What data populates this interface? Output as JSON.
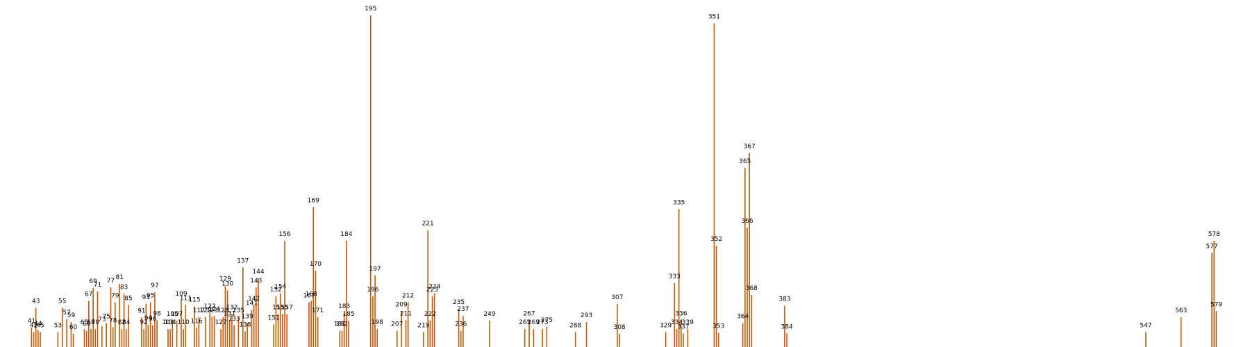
{
  "chart_data": {
    "type": "bar",
    "title": "",
    "xlabel": "",
    "ylabel": "",
    "bar_color": "#cc5500",
    "grid": false,
    "legend": "none",
    "xlim": [
      33,
      588
    ],
    "ylim": [
      0,
      1.0
    ],
    "points": [
      {
        "x": 41,
        "value": 0.059
      },
      {
        "x": 42,
        "value": 0.045
      },
      {
        "x": 43,
        "value": 0.118
      },
      {
        "x": 44,
        "value": 0.05
      },
      {
        "x": 45,
        "value": 0.045
      },
      {
        "x": 53,
        "value": 0.045
      },
      {
        "x": 55,
        "value": 0.118
      },
      {
        "x": 57,
        "value": 0.084
      },
      {
        "x": 59,
        "value": 0.075
      },
      {
        "x": 60,
        "value": 0.04
      },
      {
        "x": 65,
        "value": 0.054
      },
      {
        "x": 66,
        "value": 0.049
      },
      {
        "x": 67,
        "value": 0.139
      },
      {
        "x": 68,
        "value": 0.054
      },
      {
        "x": 69,
        "value": 0.178
      },
      {
        "x": 70,
        "value": 0.054
      },
      {
        "x": 71,
        "value": 0.167
      },
      {
        "x": 73,
        "value": 0.063
      },
      {
        "x": 75,
        "value": 0.072
      },
      {
        "x": 77,
        "value": 0.18
      },
      {
        "x": 78,
        "value": 0.06
      },
      {
        "x": 79,
        "value": 0.135
      },
      {
        "x": 81,
        "value": 0.19
      },
      {
        "x": 82,
        "value": 0.054
      },
      {
        "x": 83,
        "value": 0.16
      },
      {
        "x": 84,
        "value": 0.054
      },
      {
        "x": 85,
        "value": 0.127
      },
      {
        "x": 91,
        "value": 0.089
      },
      {
        "x": 92,
        "value": 0.054
      },
      {
        "x": 93,
        "value": 0.13
      },
      {
        "x": 94,
        "value": 0.067
      },
      {
        "x": 95,
        "value": 0.135
      },
      {
        "x": 96,
        "value": 0.065
      },
      {
        "x": 97,
        "value": 0.165
      },
      {
        "x": 98,
        "value": 0.081
      },
      {
        "x": 103,
        "value": 0.054
      },
      {
        "x": 104,
        "value": 0.054
      },
      {
        "x": 105,
        "value": 0.08
      },
      {
        "x": 107,
        "value": 0.079
      },
      {
        "x": 109,
        "value": 0.14
      },
      {
        "x": 110,
        "value": 0.054
      },
      {
        "x": 111,
        "value": 0.127
      },
      {
        "x": 115,
        "value": 0.122
      },
      {
        "x": 116,
        "value": 0.058
      },
      {
        "x": 117,
        "value": 0.09
      },
      {
        "x": 120,
        "value": 0.09
      },
      {
        "x": 122,
        "value": 0.103
      },
      {
        "x": 123,
        "value": 0.09
      },
      {
        "x": 124,
        "value": 0.094
      },
      {
        "x": 127,
        "value": 0.054
      },
      {
        "x": 128,
        "value": 0.09
      },
      {
        "x": 129,
        "value": 0.185
      },
      {
        "x": 130,
        "value": 0.171
      },
      {
        "x": 131,
        "value": 0.081
      },
      {
        "x": 132,
        "value": 0.099
      },
      {
        "x": 133,
        "value": 0.065
      },
      {
        "x": 135,
        "value": 0.09
      },
      {
        "x": 137,
        "value": 0.24
      },
      {
        "x": 138,
        "value": 0.047
      },
      {
        "x": 139,
        "value": 0.072
      },
      {
        "x": 141,
        "value": 0.112
      },
      {
        "x": 142,
        "value": 0.126
      },
      {
        "x": 143,
        "value": 0.18
      },
      {
        "x": 144,
        "value": 0.207
      },
      {
        "x": 151,
        "value": 0.068
      },
      {
        "x": 152,
        "value": 0.153
      },
      {
        "x": 153,
        "value": 0.099
      },
      {
        "x": 154,
        "value": 0.162
      },
      {
        "x": 155,
        "value": 0.099
      },
      {
        "x": 156,
        "value": 0.32
      },
      {
        "x": 157,
        "value": 0.099
      },
      {
        "x": 167,
        "value": 0.135
      },
      {
        "x": 168,
        "value": 0.139
      },
      {
        "x": 169,
        "value": 0.422
      },
      {
        "x": 170,
        "value": 0.23
      },
      {
        "x": 171,
        "value": 0.09
      },
      {
        "x": 181,
        "value": 0.049
      },
      {
        "x": 182,
        "value": 0.049
      },
      {
        "x": 183,
        "value": 0.103
      },
      {
        "x": 184,
        "value": 0.32
      },
      {
        "x": 185,
        "value": 0.08
      },
      {
        "x": 195,
        "value": 1.0
      },
      {
        "x": 196,
        "value": 0.153
      },
      {
        "x": 197,
        "value": 0.216
      },
      {
        "x": 198,
        "value": 0.054
      },
      {
        "x": 207,
        "value": 0.049
      },
      {
        "x": 209,
        "value": 0.108
      },
      {
        "x": 211,
        "value": 0.081
      },
      {
        "x": 212,
        "value": 0.135
      },
      {
        "x": 219,
        "value": 0.045
      },
      {
        "x": 221,
        "value": 0.352
      },
      {
        "x": 222,
        "value": 0.08
      },
      {
        "x": 223,
        "value": 0.153
      },
      {
        "x": 224,
        "value": 0.162
      },
      {
        "x": 235,
        "value": 0.115
      },
      {
        "x": 236,
        "value": 0.049
      },
      {
        "x": 237,
        "value": 0.094
      },
      {
        "x": 249,
        "value": 0.08
      },
      {
        "x": 265,
        "value": 0.054
      },
      {
        "x": 267,
        "value": 0.081
      },
      {
        "x": 269,
        "value": 0.054
      },
      {
        "x": 273,
        "value": 0.054
      },
      {
        "x": 275,
        "value": 0.061
      },
      {
        "x": 288,
        "value": 0.045
      },
      {
        "x": 293,
        "value": 0.075
      },
      {
        "x": 307,
        "value": 0.13
      },
      {
        "x": 308,
        "value": 0.04
      },
      {
        "x": 329,
        "value": 0.045
      },
      {
        "x": 333,
        "value": 0.193
      },
      {
        "x": 334,
        "value": 0.054
      },
      {
        "x": 335,
        "value": 0.415
      },
      {
        "x": 336,
        "value": 0.081
      },
      {
        "x": 337,
        "value": 0.041
      },
      {
        "x": 339,
        "value": 0.054
      },
      {
        "x": 351,
        "value": 0.976
      },
      {
        "x": 352,
        "value": 0.305
      },
      {
        "x": 353,
        "value": 0.043
      },
      {
        "x": 364,
        "value": 0.072
      },
      {
        "x": 365,
        "value": 0.54
      },
      {
        "x": 366,
        "value": 0.36
      },
      {
        "x": 367,
        "value": 0.585
      },
      {
        "x": 368,
        "value": 0.157
      },
      {
        "x": 383,
        "value": 0.124
      },
      {
        "x": 384,
        "value": 0.041
      },
      {
        "x": 547,
        "value": 0.045
      },
      {
        "x": 563,
        "value": 0.09
      },
      {
        "x": 577,
        "value": 0.284
      },
      {
        "x": 578,
        "value": 0.32
      },
      {
        "x": 579,
        "value": 0.108
      }
    ]
  }
}
